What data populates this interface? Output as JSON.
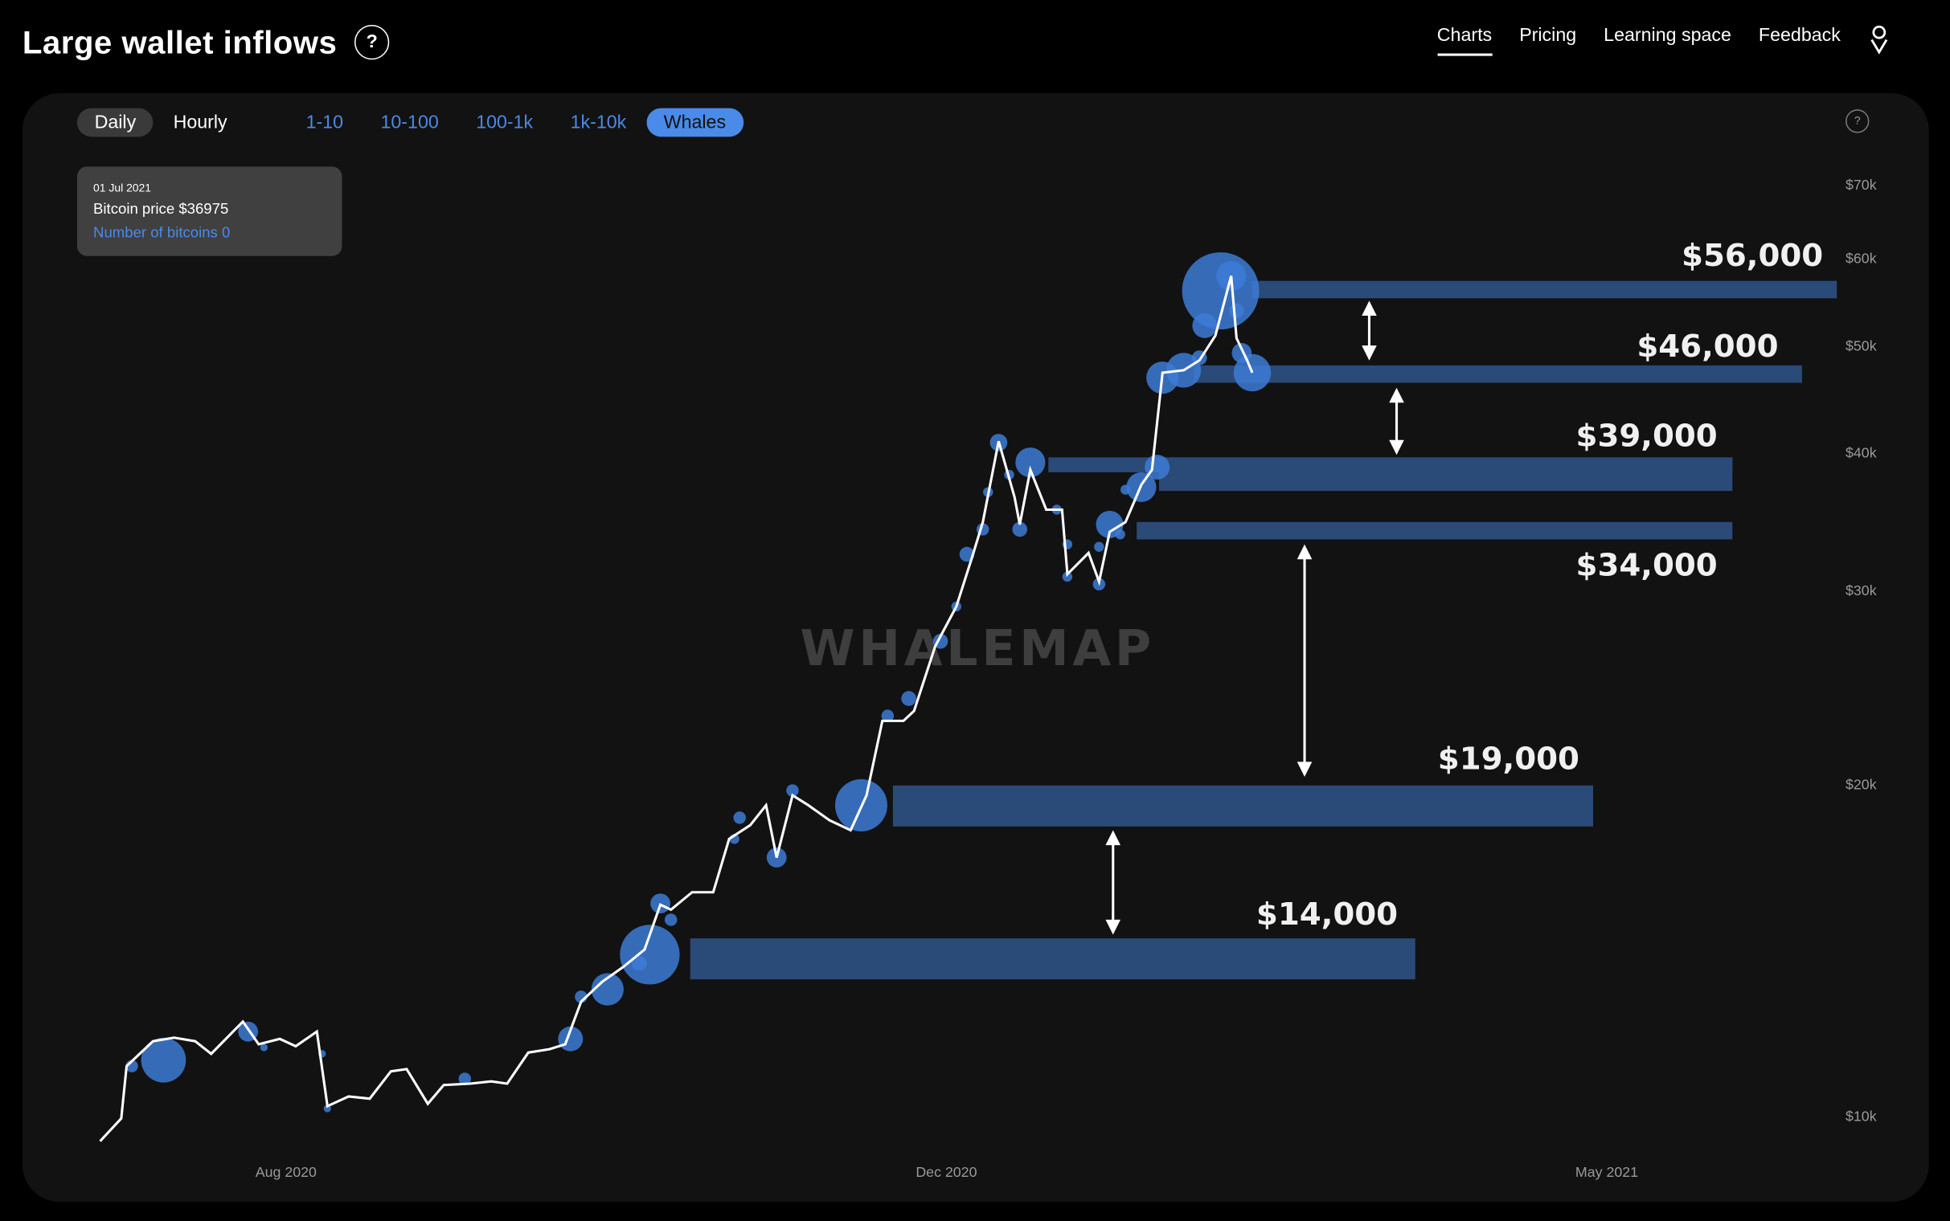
{
  "header": {
    "title": "Large wallet inflows",
    "help_label": "?",
    "nav": [
      {
        "label": "Charts",
        "active": true
      },
      {
        "label": "Pricing"
      },
      {
        "label": "Learning space"
      },
      {
        "label": "Feedback"
      }
    ],
    "user_icon": "user-icon"
  },
  "toolbar": {
    "intervals": [
      {
        "label": "Daily",
        "active": true
      },
      {
        "label": "Hourly"
      }
    ],
    "cohorts": [
      {
        "label": "1-10"
      },
      {
        "label": "10-100"
      },
      {
        "label": "100-1k"
      },
      {
        "label": "1k-10k"
      },
      {
        "label": "Whales",
        "active": true
      }
    ],
    "help_label": "?"
  },
  "tooltip": {
    "date": "01 Jul 2021",
    "price": "Bitcoin price $36975",
    "bitcoins": "Number of bitcoins 0"
  },
  "colors": {
    "background": "#000000",
    "panel": "#121212",
    "accent": "#4a8ae8",
    "bubble": "#3d7bd6",
    "level_bar": "#2a4a78",
    "line": "#ffffff"
  },
  "watermark": "WHALEMAP",
  "chart_data": {
    "type": "line",
    "y_scale": "log",
    "ylim": [
      9000,
      75000
    ],
    "y_ticks": [
      {
        "value": 70000,
        "label": "$70k"
      },
      {
        "value": 60000,
        "label": "$60k"
      },
      {
        "value": 50000,
        "label": "$50k"
      },
      {
        "value": 40000,
        "label": "$40k"
      },
      {
        "value": 30000,
        "label": "$30k"
      },
      {
        "value": 20000,
        "label": "$20k"
      },
      {
        "value": 10000,
        "label": "$10k"
      }
    ],
    "x_ticks": [
      "Aug 2020",
      "Dec 2020",
      "May 2021"
    ],
    "grid": false,
    "series": [
      {
        "points": [
          [
            "2020-07-22",
            9490
          ],
          [
            "2020-07-26",
            9950
          ],
          [
            "2020-07-27",
            11100
          ],
          [
            "2020-08-01",
            11690
          ],
          [
            "2020-08-05",
            11780
          ],
          [
            "2020-08-09",
            11690
          ],
          [
            "2020-08-12",
            11390
          ],
          [
            "2020-08-18",
            12180
          ],
          [
            "2020-08-21",
            11620
          ],
          [
            "2020-08-25",
            11750
          ],
          [
            "2020-08-28",
            11570
          ],
          [
            "2020-09-01",
            11930
          ],
          [
            "2020-09-03",
            10210
          ],
          [
            "2020-09-07",
            10420
          ],
          [
            "2020-09-11",
            10370
          ],
          [
            "2020-09-15",
            10980
          ],
          [
            "2020-09-18",
            11030
          ],
          [
            "2020-09-22",
            10260
          ],
          [
            "2020-09-25",
            10670
          ],
          [
            "2020-09-30",
            10700
          ],
          [
            "2020-10-04",
            10750
          ],
          [
            "2020-10-07",
            10700
          ],
          [
            "2020-10-11",
            11420
          ],
          [
            "2020-10-15",
            11500
          ],
          [
            "2020-10-18",
            11620
          ],
          [
            "2020-10-21",
            12700
          ],
          [
            "2020-10-25",
            13240
          ],
          [
            "2020-10-29",
            13660
          ],
          [
            "2020-11-02",
            14160
          ],
          [
            "2020-11-05",
            15550
          ],
          [
            "2020-11-07",
            15390
          ],
          [
            "2020-11-11",
            15960
          ],
          [
            "2020-11-15",
            15960
          ],
          [
            "2020-11-18",
            17840
          ],
          [
            "2020-11-22",
            18360
          ],
          [
            "2020-11-25",
            19140
          ],
          [
            "2020-11-27",
            17160
          ],
          [
            "2020-11-30",
            19540
          ],
          [
            "2020-12-03",
            19140
          ],
          [
            "2020-12-07",
            18550
          ],
          [
            "2020-12-11",
            18170
          ],
          [
            "2020-12-14",
            19540
          ],
          [
            "2020-12-17",
            22830
          ],
          [
            "2020-12-21",
            22830
          ],
          [
            "2020-12-23",
            23310
          ],
          [
            "2020-12-27",
            26680
          ],
          [
            "2020-12-31",
            28990
          ],
          [
            "2021-01-03",
            32170
          ],
          [
            "2021-01-05",
            34580
          ],
          [
            "2021-01-08",
            40940
          ],
          [
            "2021-01-11",
            36430
          ],
          [
            "2021-01-12",
            34410
          ],
          [
            "2021-01-14",
            38570
          ],
          [
            "2021-01-17",
            35490
          ],
          [
            "2021-01-20",
            35490
          ],
          [
            "2021-01-21",
            31010
          ],
          [
            "2021-01-25",
            32420
          ],
          [
            "2021-01-27",
            30530
          ],
          [
            "2021-01-29",
            33880
          ],
          [
            "2021-02-01",
            34580
          ],
          [
            "2021-02-04",
            37390
          ],
          [
            "2021-02-06",
            38570
          ],
          [
            "2021-02-08",
            47240
          ],
          [
            "2021-02-12",
            47480
          ],
          [
            "2021-02-15",
            48480
          ],
          [
            "2021-02-18",
            51050
          ],
          [
            "2021-02-21",
            57820
          ],
          [
            "2021-02-22",
            50780
          ],
          [
            "2021-02-24",
            48480
          ],
          [
            "2021-02-25",
            47240
          ]
        ]
      }
    ],
    "bubbles": [
      [
        "2020-07-28",
        11100,
        5
      ],
      [
        "2020-08-03",
        11240,
        18
      ],
      [
        "2020-08-19",
        11930,
        8
      ],
      [
        "2020-08-22",
        11540,
        3
      ],
      [
        "2020-09-02",
        11390,
        3
      ],
      [
        "2020-09-03",
        10160,
        3
      ],
      [
        "2020-09-29",
        10810,
        5
      ],
      [
        "2020-10-19",
        11750,
        10
      ],
      [
        "2020-10-21",
        12830,
        5
      ],
      [
        "2020-10-26",
        13030,
        13
      ],
      [
        "2020-11-01",
        13760,
        6
      ],
      [
        "2020-11-03",
        14010,
        24
      ],
      [
        "2020-11-05",
        15590,
        8
      ],
      [
        "2020-11-07",
        15070,
        5
      ],
      [
        "2020-11-19",
        17840,
        4
      ],
      [
        "2020-11-20",
        18650,
        5
      ],
      [
        "2020-11-27",
        17160,
        8
      ],
      [
        "2020-11-30",
        19740,
        5
      ],
      [
        "2020-12-13",
        19140,
        21
      ],
      [
        "2020-12-18",
        23070,
        5
      ],
      [
        "2020-12-22",
        23920,
        6
      ],
      [
        "2020-12-28",
        26960,
        6
      ],
      [
        "2020-12-31",
        28990,
        4
      ],
      [
        "2021-01-02",
        32330,
        6
      ],
      [
        "2021-01-05",
        34060,
        5
      ],
      [
        "2021-01-06",
        36810,
        4
      ],
      [
        "2021-01-08",
        40830,
        7
      ],
      [
        "2021-01-10",
        38170,
        4
      ],
      [
        "2021-01-12",
        34060,
        6
      ],
      [
        "2021-01-14",
        39170,
        12
      ],
      [
        "2021-01-19",
        35490,
        4
      ],
      [
        "2021-01-21",
        33010,
        4
      ],
      [
        "2021-01-21",
        30850,
        4
      ],
      [
        "2021-01-27",
        30370,
        5
      ],
      [
        "2021-01-27",
        32840,
        4
      ],
      [
        "2021-01-29",
        34410,
        11
      ],
      [
        "2021-01-31",
        33700,
        4
      ],
      [
        "2021-02-01",
        37000,
        4
      ],
      [
        "2021-02-04",
        37200,
        12
      ],
      [
        "2021-02-07",
        38780,
        10
      ],
      [
        "2021-02-08",
        46750,
        13
      ],
      [
        "2021-02-12",
        47480,
        14
      ],
      [
        "2021-02-15",
        48730,
        6
      ],
      [
        "2021-02-16",
        52120,
        10
      ],
      [
        "2021-02-19",
        56050,
        31
      ],
      [
        "2021-02-21",
        57820,
        12
      ],
      [
        "2021-02-22",
        53770,
        6
      ],
      [
        "2021-02-23",
        49230,
        8
      ],
      [
        "2021-02-25",
        47240,
        15
      ]
    ],
    "levels": [
      {
        "label": "$56,000"
      },
      {
        "label": "$46,000"
      },
      {
        "label": "$39,000"
      },
      {
        "label": "$34,000"
      },
      {
        "label": "$19,000"
      },
      {
        "label": "$14,000"
      }
    ]
  }
}
